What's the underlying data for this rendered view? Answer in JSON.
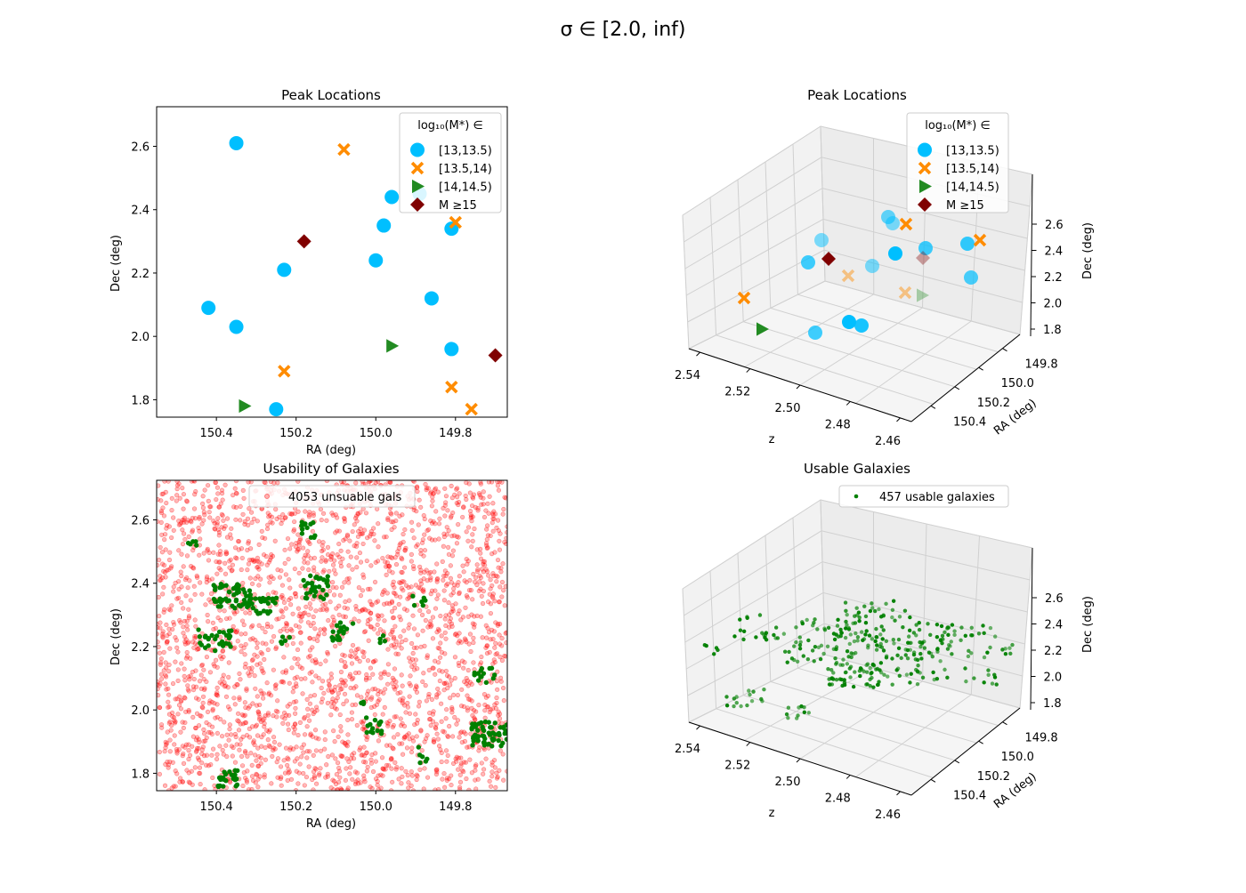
{
  "suptitle": "σ ∈  [2.0, inf)",
  "colors": {
    "m13": "#00bfff",
    "m135": "#ff8c00",
    "m14": "#228b22",
    "m15": "#800000",
    "unusable": "#ff0000",
    "usable": "#008000"
  },
  "chart_data": [
    {
      "id": "peak2d",
      "type": "scatter",
      "title": "Peak Locations",
      "xlabel": "RA (deg)",
      "ylabel": "Dec (deg)",
      "xlim": [
        150.55,
        149.67
      ],
      "ylim": [
        1.745,
        2.725
      ],
      "xticks": [
        "150.4",
        "150.2",
        "150.0",
        "149.8"
      ],
      "xtick_values": [
        150.4,
        150.2,
        150.0,
        149.8
      ],
      "yticks": [
        "1.8",
        "2.0",
        "2.2",
        "2.4",
        "2.6"
      ],
      "ytick_values": [
        1.8,
        2.0,
        2.2,
        2.4,
        2.6
      ],
      "legend_title": "log₁₀(M*) ∈",
      "legend_position": "upper right",
      "series": [
        {
          "name": "[13,13.5)",
          "marker": "circle",
          "color": "#00bfff",
          "x": [
            150.35,
            150.42,
            150.35,
            150.25,
            150.23,
            150.0,
            149.98,
            149.96,
            149.89,
            149.86,
            149.81,
            149.81
          ],
          "y": [
            2.61,
            2.09,
            2.03,
            1.77,
            2.21,
            2.24,
            2.35,
            2.44,
            2.45,
            2.12,
            2.34,
            1.96
          ]
        },
        {
          "name": "[13.5,14)",
          "marker": "x",
          "color": "#ff8c00",
          "x": [
            150.08,
            150.23,
            149.81,
            149.8,
            149.76
          ],
          "y": [
            2.59,
            1.89,
            1.84,
            2.36,
            1.77
          ]
        },
        {
          "name": "[14,14.5)",
          "marker": "triangle",
          "color": "#228b22",
          "x": [
            150.33,
            149.96
          ],
          "y": [
            1.78,
            1.97
          ]
        },
        {
          "name": "M  ≥15",
          "marker": "diamond",
          "color": "#800000",
          "x": [
            150.18,
            149.7
          ],
          "y": [
            2.3,
            1.94
          ]
        }
      ]
    },
    {
      "id": "peak3d",
      "type": "scatter",
      "projection": "3d",
      "title": "Peak Locations",
      "xlabel": "z",
      "ylabel": "RA (deg)",
      "zlabel": "Dec (deg)",
      "z_axis_ticks": [
        "2.54",
        "2.52",
        "2.50",
        "2.48",
        "2.46"
      ],
      "ra_axis_ticks": [
        "149.8",
        "150.0",
        "150.2",
        "150.4"
      ],
      "dec_axis_ticks": [
        "1.8",
        "2.0",
        "2.2",
        "2.4",
        "2.6"
      ],
      "legend_title": "log₁₀(M*) ∈",
      "legend_position": "upper right",
      "legend": [
        "[13,13.5)",
        "[13.5,14)",
        "[14,14.5)",
        "M  ≥15"
      ]
    },
    {
      "id": "usability",
      "type": "scatter",
      "title": "Usability of Galaxies",
      "xlabel": "RA (deg)",
      "ylabel": "Dec (deg)",
      "xlim": [
        150.55,
        149.67
      ],
      "ylim": [
        1.745,
        2.725
      ],
      "xticks": [
        "150.4",
        "150.2",
        "150.0",
        "149.8"
      ],
      "xtick_values": [
        150.4,
        150.2,
        150.0,
        149.8
      ],
      "yticks": [
        "1.8",
        "2.0",
        "2.2",
        "2.4",
        "2.6"
      ],
      "ytick_values": [
        1.8,
        2.0,
        2.2,
        2.4,
        2.6
      ],
      "series": [
        {
          "name": "4053 unsuable gals",
          "color": "#ff0000",
          "count": 4053
        },
        {
          "name": "usable",
          "color": "#008000"
        }
      ],
      "legend": [
        "4053 unsuable gals"
      ]
    },
    {
      "id": "usable3d",
      "type": "scatter",
      "projection": "3d",
      "title": "Usable Galaxies",
      "xlabel": "z",
      "ylabel": "RA (deg)",
      "zlabel": "Dec (deg)",
      "z_axis_ticks": [
        "2.54",
        "2.52",
        "2.50",
        "2.48",
        "2.46"
      ],
      "ra_axis_ticks": [
        "149.8",
        "150.0",
        "150.2",
        "150.4"
      ],
      "dec_axis_ticks": [
        "1.8",
        "2.0",
        "2.2",
        "2.4",
        "2.6"
      ],
      "legend": [
        "457 usable galaxies"
      ],
      "series": [
        {
          "name": "457 usable galaxies",
          "color": "#008000",
          "count": 457
        }
      ]
    }
  ]
}
